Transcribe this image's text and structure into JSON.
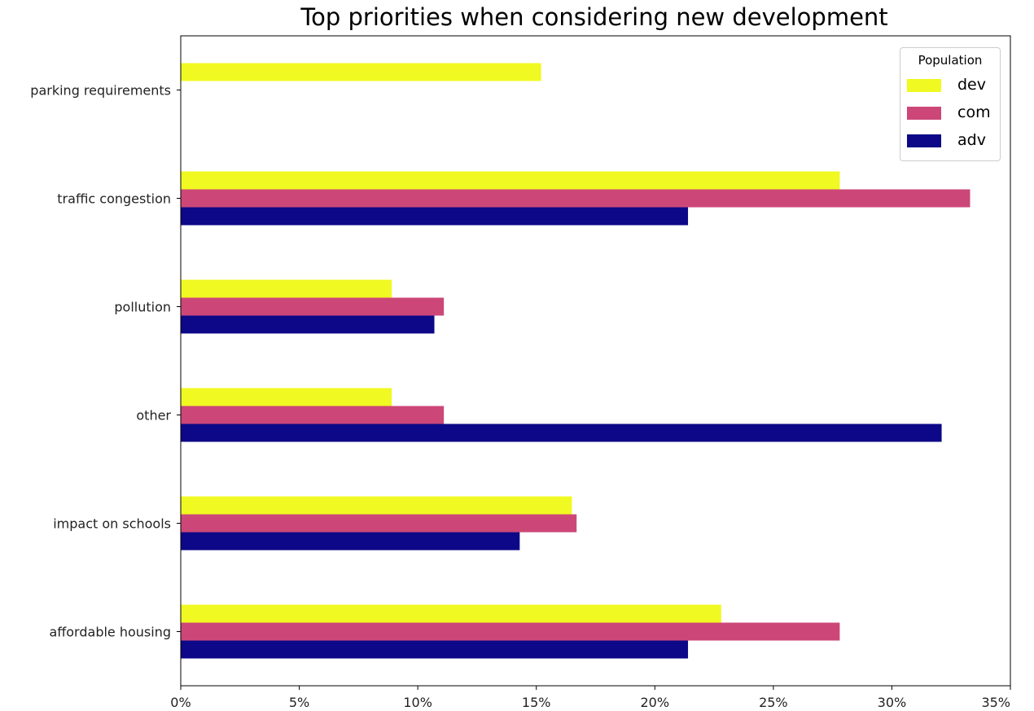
{
  "chart_data": {
    "type": "bar",
    "orientation": "horizontal",
    "title": "Top priorities when considering new development",
    "xlabel": "",
    "ylabel": "",
    "categories": [
      "affordable housing",
      "impact on schools",
      "other",
      "pollution",
      "traffic congestion",
      "parking requirements"
    ],
    "x_ticks": [
      "0%",
      "5%",
      "10%",
      "15%",
      "20%",
      "25%",
      "30%",
      "35%"
    ],
    "xlim": [
      0,
      35
    ],
    "x_unit": "percent",
    "grid": false,
    "legend": {
      "title": "Population",
      "placement": "top-right"
    },
    "series": [
      {
        "name": "adv",
        "color": "#0d0887",
        "values": [
          21.4,
          14.3,
          32.1,
          10.7,
          21.4,
          0
        ]
      },
      {
        "name": "com",
        "color": "#cc4778",
        "values": [
          27.8,
          16.7,
          11.1,
          11.1,
          33.3,
          0
        ]
      },
      {
        "name": "dev",
        "color": "#f0f921",
        "values": [
          22.8,
          16.5,
          8.9,
          8.9,
          27.8,
          15.2
        ]
      }
    ]
  }
}
